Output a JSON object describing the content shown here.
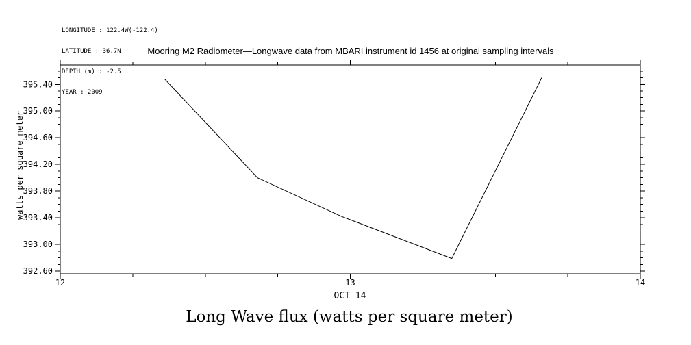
{
  "meta": {
    "longitude": "LONGITUDE : 122.4W(-122.4)",
    "latitude": "LATITUDE : 36.7N",
    "depth": "DEPTH (m) : -2.5",
    "year": "YEAR : 2009"
  },
  "chart_data": {
    "type": "line",
    "title": "Mooring M2 Radiometer—Longwave data from MBARI instrument id 1456 at original sampling intervals",
    "xlabel": "OCT 14",
    "ylabel": "watts per square meter",
    "caption": "Long Wave flux (watts per square meter)",
    "x": [
      12.36,
      12.68,
      12.97,
      13.35,
      13.66
    ],
    "y": [
      395.48,
      394.0,
      393.42,
      392.79,
      395.5
    ],
    "xlim": [
      12,
      14
    ],
    "ylim": [
      392.56,
      395.69
    ],
    "x_tick_values": [
      12,
      13,
      14
    ],
    "x_tick_labels": [
      "12",
      "13",
      "14"
    ],
    "y_tick_values": [
      392.6,
      393.0,
      393.4,
      393.8,
      394.2,
      394.6,
      395.0,
      395.4
    ],
    "y_tick_labels": [
      "392.60",
      "393.00",
      "393.40",
      "393.80",
      "394.20",
      "394.60",
      "395.00",
      "395.40"
    ],
    "x_minor_step": 0.25,
    "y_minor_step": 0.1,
    "grid": false,
    "legend_position": "none",
    "line_color": "#000000",
    "background_color": "#ffffff"
  }
}
